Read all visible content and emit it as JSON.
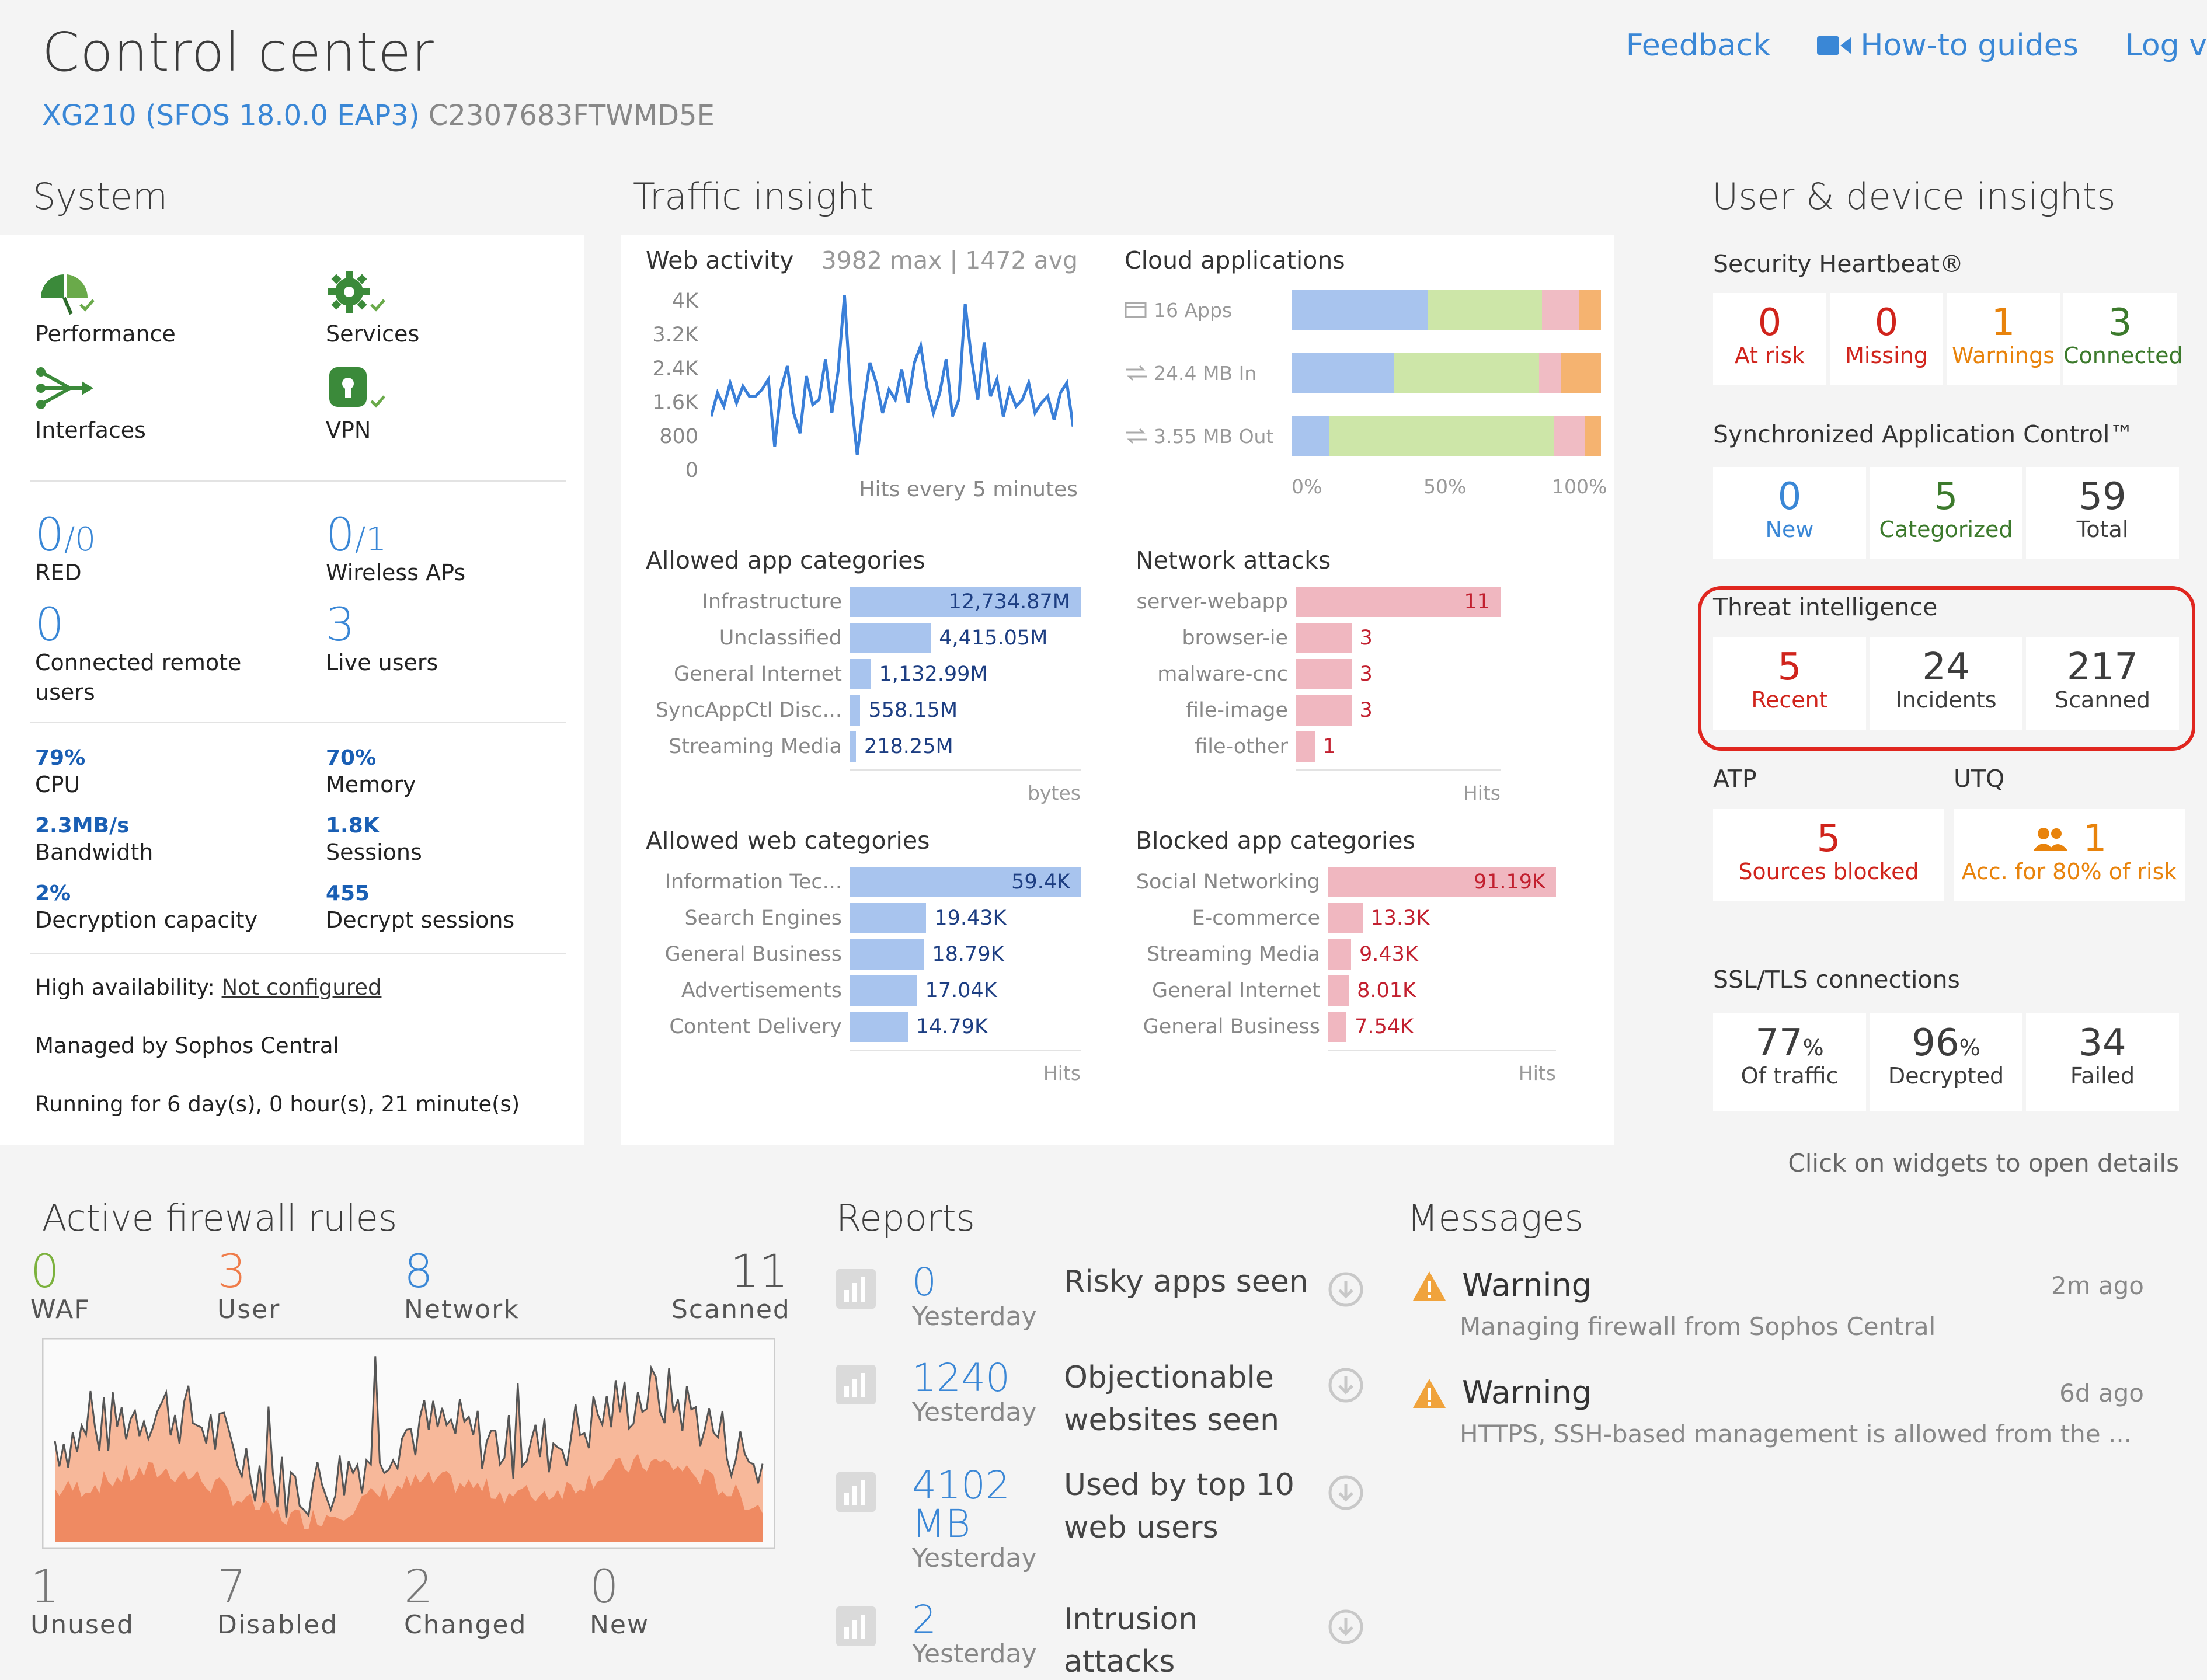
{
  "header": {
    "title": "Control center",
    "model": "XG210 (SFOS 18.0.0 EAP3)",
    "serial": "C2307683FTWMD5E",
    "links": {
      "feedback": "Feedback",
      "howto": "How-to guides",
      "log": "Log v"
    }
  },
  "system": {
    "title": "System",
    "icons": [
      {
        "label": "Performance",
        "icon": "performance-icon"
      },
      {
        "label": "Services",
        "icon": "services-gear-icon"
      },
      {
        "label": "Interfaces",
        "icon": "interfaces-icon"
      },
      {
        "label": "VPN",
        "icon": "vpn-lock-icon"
      }
    ],
    "red": {
      "value": "0",
      "total": "/0",
      "label": "RED"
    },
    "wireless": {
      "value": "0",
      "total": "/1",
      "label": "Wireless APs"
    },
    "remote_users": {
      "value": "0",
      "label": "Connected remote users"
    },
    "live_users": {
      "value": "3",
      "label": "Live users"
    },
    "cpu": {
      "value": "79%",
      "label": "CPU"
    },
    "memory": {
      "value": "70%",
      "label": "Memory"
    },
    "bandwidth": {
      "value": "2.3MB/s",
      "label": "Bandwidth"
    },
    "sessions": {
      "value": "1.8K",
      "label": "Sessions"
    },
    "decryption": {
      "value": "2%",
      "label": "Decryption capacity"
    },
    "decrypt_sessions": {
      "value": "455",
      "label": "Decrypt sessions"
    },
    "ha_label": "High availability:",
    "ha_link": "Not configured",
    "managed": "Managed by Sophos Central",
    "running": "Running for 6 day(s), 0 hour(s), 21 minute(s)"
  },
  "traffic": {
    "title": "Traffic insight",
    "web_activity": {
      "title": "Web activity",
      "stats": "3982 max | 1472 avg",
      "y_ticks": [
        "4K",
        "3.2K",
        "2.4K",
        "1.6K",
        "800",
        "0"
      ],
      "footer": "Hits every 5 minutes"
    },
    "cloud": {
      "title": "Cloud applications",
      "rows": [
        {
          "label": "16 Apps",
          "segments": [
            0.44,
            0.37,
            0.12,
            0.07
          ]
        },
        {
          "label": "24.4 MB In",
          "segments": [
            0.33,
            0.47,
            0.07,
            0.13
          ]
        },
        {
          "label": "3.55 MB Out",
          "segments": [
            0.12,
            0.73,
            0.1,
            0.05
          ]
        }
      ],
      "ticks": [
        "0%",
        "50%",
        "100%"
      ]
    },
    "allowed_app": {
      "title": "Allowed app categories",
      "unit": "bytes",
      "rows": [
        {
          "cat": "Infrastructure",
          "val": "12,734.87M",
          "frac": 1.0
        },
        {
          "cat": "Unclassified",
          "val": "4,415.05M",
          "frac": 0.35
        },
        {
          "cat": "General Internet",
          "val": "1,132.99M",
          "frac": 0.09
        },
        {
          "cat": "SyncAppCtl Disc...",
          "val": "558.15M",
          "frac": 0.044
        },
        {
          "cat": "Streaming Media",
          "val": "218.25M",
          "frac": 0.017
        }
      ]
    },
    "network_attacks": {
      "title": "Network attacks",
      "unit": "Hits",
      "rows": [
        {
          "cat": "server-webapp",
          "val": "11",
          "frac": 1.0
        },
        {
          "cat": "browser-ie",
          "val": "3",
          "frac": 0.27
        },
        {
          "cat": "malware-cnc",
          "val": "3",
          "frac": 0.27
        },
        {
          "cat": "file-image",
          "val": "3",
          "frac": 0.27
        },
        {
          "cat": "file-other",
          "val": "1",
          "frac": 0.09
        }
      ]
    },
    "allowed_web": {
      "title": "Allowed web categories",
      "unit": "Hits",
      "rows": [
        {
          "cat": "Information Tec...",
          "val": "59.4K",
          "frac": 1.0
        },
        {
          "cat": "Search Engines",
          "val": "19.43K",
          "frac": 0.33
        },
        {
          "cat": "General Business",
          "val": "18.79K",
          "frac": 0.32
        },
        {
          "cat": "Advertisements",
          "val": "17.04K",
          "frac": 0.29
        },
        {
          "cat": "Content Delivery",
          "val": "14.79K",
          "frac": 0.25
        }
      ]
    },
    "blocked_app": {
      "title": "Blocked app categories",
      "unit": "Hits",
      "rows": [
        {
          "cat": "Social Networking",
          "val": "91.19K",
          "frac": 1.0
        },
        {
          "cat": "E-commerce",
          "val": "13.3K",
          "frac": 0.15
        },
        {
          "cat": "Streaming Media",
          "val": "9.43K",
          "frac": 0.1
        },
        {
          "cat": "General Internet",
          "val": "8.01K",
          "frac": 0.09
        },
        {
          "cat": "General Business",
          "val": "7.54K",
          "frac": 0.08
        }
      ]
    }
  },
  "insights": {
    "title": "User & device insights",
    "heartbeat": {
      "title": "Security Heartbeat®",
      "tiles": [
        {
          "n": "0",
          "t": "At risk"
        },
        {
          "n": "0",
          "t": "Missing"
        },
        {
          "n": "1",
          "t": "Warnings"
        },
        {
          "n": "3",
          "t": "Connected"
        }
      ]
    },
    "sac": {
      "title": "Synchronized Application Control™",
      "tiles": [
        {
          "n": "0",
          "t": "New"
        },
        {
          "n": "5",
          "t": "Categorized"
        },
        {
          "n": "59",
          "t": "Total"
        }
      ]
    },
    "threat": {
      "title": "Threat intelligence",
      "tiles": [
        {
          "n": "5",
          "t": "Recent"
        },
        {
          "n": "24",
          "t": "Incidents"
        },
        {
          "n": "217",
          "t": "Scanned"
        }
      ]
    },
    "atp": {
      "title": "ATP",
      "n": "5",
      "t": "Sources blocked"
    },
    "utq": {
      "title": "UTQ",
      "n": "1",
      "t": "Acc. for 80% of risk"
    },
    "ssl": {
      "title": "SSL/TLS connections",
      "tiles": [
        {
          "n": "77",
          "suffix": "%",
          "t": "Of traffic"
        },
        {
          "n": "96",
          "suffix": "%",
          "t": "Decrypted"
        },
        {
          "n": "34",
          "suffix": "",
          "t": "Failed"
        }
      ]
    },
    "hint": "Click on widgets to open details"
  },
  "firewall": {
    "title": "Active firewall rules",
    "top": [
      {
        "n": "0",
        "t": "WAF",
        "color": "#7bb13c"
      },
      {
        "n": "3",
        "t": "User",
        "color": "#ef7c4a"
      },
      {
        "n": "8",
        "t": "Network",
        "color": "#3a87d6"
      },
      {
        "n": "11",
        "t": "Scanned",
        "color": "#555555"
      }
    ],
    "bottom": [
      {
        "n": "1",
        "t": "Unused"
      },
      {
        "n": "7",
        "t": "Disabled"
      },
      {
        "n": "2",
        "t": "Changed"
      },
      {
        "n": "0",
        "t": "New"
      }
    ]
  },
  "reports": {
    "title": "Reports",
    "items": [
      {
        "n": "0",
        "sub": "Yesterday",
        "title": "Risky apps seen"
      },
      {
        "n": "1240",
        "sub": "Yesterday",
        "title": "Objectionable websites seen"
      },
      {
        "n": "4102 MB",
        "sub": "Yesterday",
        "title": "Used by top 10 web users"
      },
      {
        "n": "2",
        "sub": "Yesterday",
        "title": "Intrusion attacks"
      }
    ]
  },
  "messages": {
    "title": "Messages",
    "items": [
      {
        "title": "Warning",
        "text": "Managing firewall from Sophos Central",
        "time": "2m ago"
      },
      {
        "title": "Warning",
        "text": "HTTPS, SSH-based management is allowed from the ...",
        "time": "6d ago"
      }
    ]
  },
  "colors": {
    "accent": "#3a87d6",
    "danger": "#d0241c",
    "warning": "#e8830c",
    "ok": "#3c7a2c",
    "bar_blue": "#a8c4ee",
    "bar_red": "#f0b7c0",
    "cloud_segments": [
      "#a8c4ee",
      "#cde6a8",
      "#f0bcc4",
      "#f5b370"
    ]
  }
}
